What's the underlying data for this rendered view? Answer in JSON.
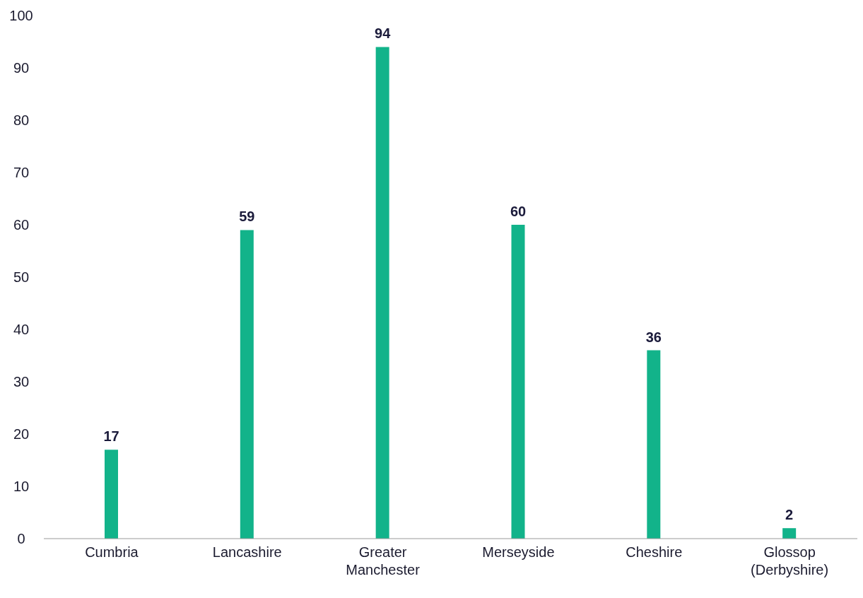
{
  "chart_data": {
    "type": "bar",
    "categories": [
      "Cumbria",
      "Lancashire",
      "Greater Manchester",
      "Merseyside",
      "Cheshire",
      "Glossop (Derbyshire)"
    ],
    "values": [
      17,
      59,
      94,
      60,
      36,
      2
    ],
    "color": "#12b38a",
    "ylim": [
      0,
      100
    ],
    "yticks": [
      0,
      10,
      20,
      30,
      40,
      50,
      60,
      70,
      80,
      90,
      100
    ],
    "grid": false,
    "data_labels": true
  }
}
